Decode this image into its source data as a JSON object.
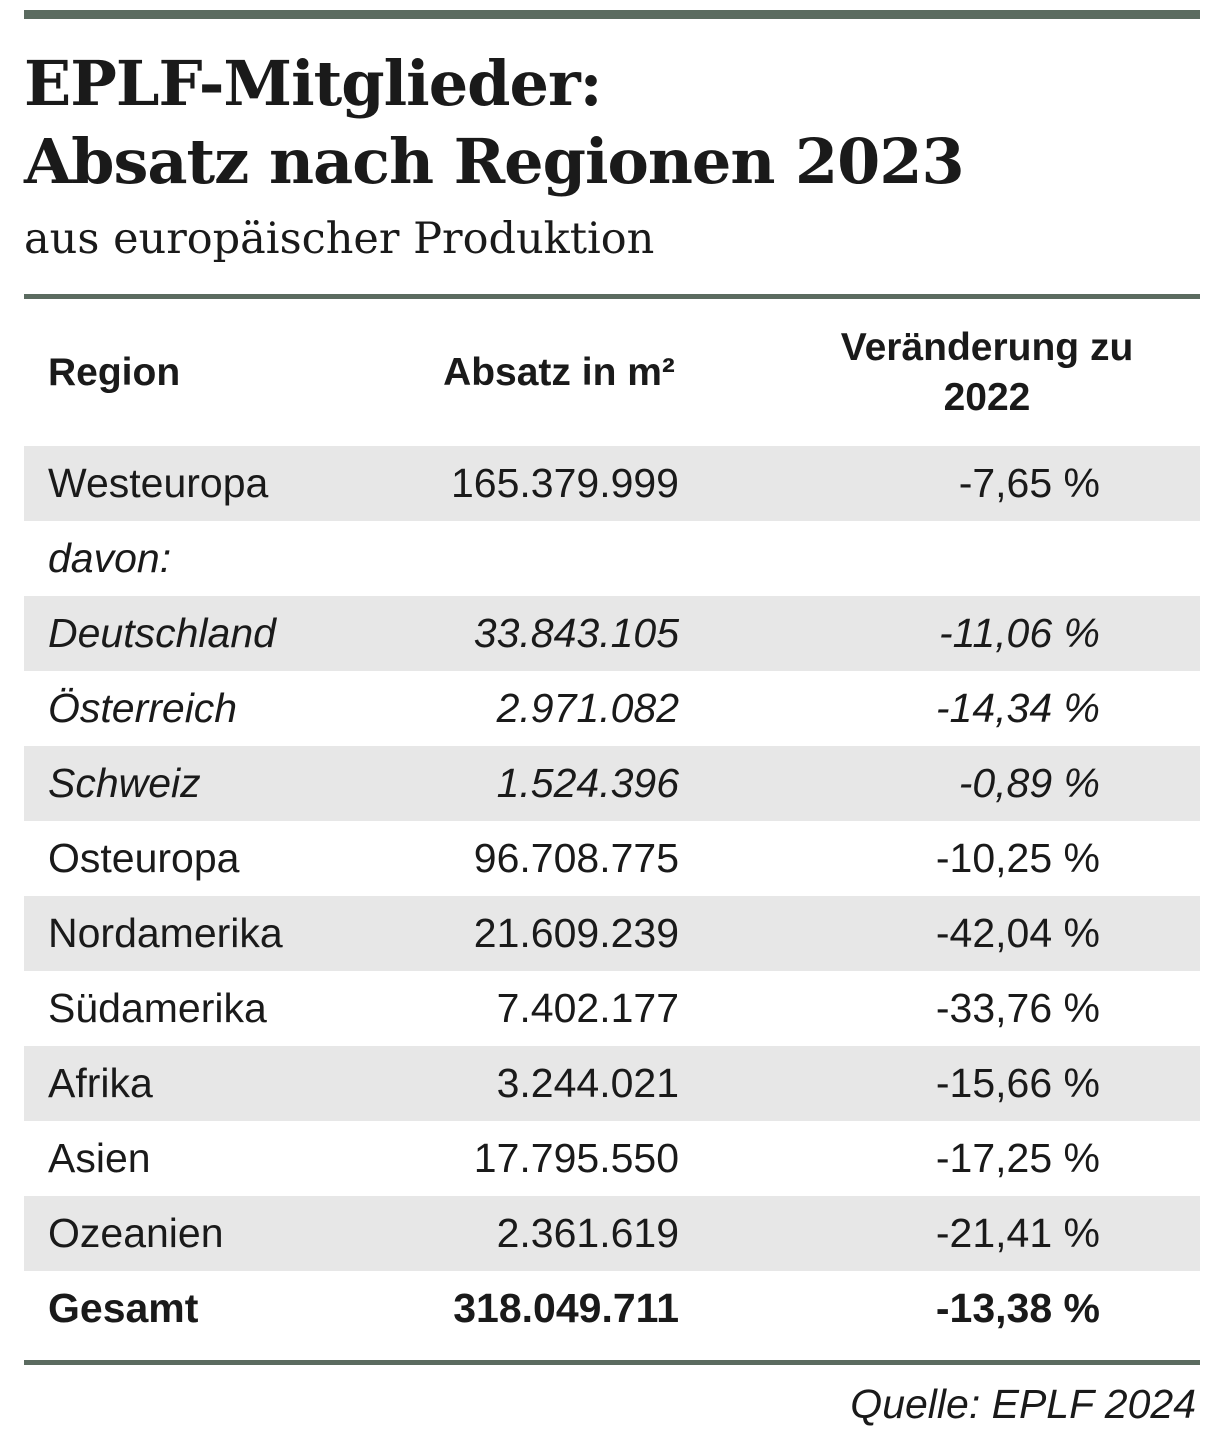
{
  "header": {
    "title_line1": "EPLF-Mitglieder:",
    "title_line2": "Absatz nach Regionen 2023",
    "subtitle": "aus europäischer Produktion"
  },
  "colors": {
    "rule": "#5b6b60",
    "row_shade": "#e7e7e7"
  },
  "source": "Quelle: EPLF 2024",
  "chart_data": {
    "type": "table",
    "title": "EPLF-Mitglieder: Absatz nach Regionen 2023",
    "subtitle": "aus europäischer Produktion",
    "columns": [
      "Region",
      "Absatz in m²",
      "Veränderung zu 2022"
    ],
    "rows": [
      [
        "Westeuropa",
        "165.379.999",
        "-7,65 %"
      ],
      [
        "davon:",
        "",
        ""
      ],
      [
        "Deutschland",
        "33.843.105",
        "-11,06 %"
      ],
      [
        "Österreich",
        "2.971.082",
        "-14,34 %"
      ],
      [
        "Schweiz",
        "1.524.396",
        "-0,89 %"
      ],
      [
        "Osteuropa",
        "96.708.775",
        "-10,25 %"
      ],
      [
        "Nordamerika",
        "21.609.239",
        "-42,04 %"
      ],
      [
        "Südamerika",
        "7.402.177",
        "-33,76 %"
      ],
      [
        "Afrika",
        "3.244.021",
        "-15,66 %"
      ],
      [
        "Asien",
        "17.795.550",
        "-17,25 %"
      ],
      [
        "Ozeanien",
        "2.361.619",
        "-21,41 %"
      ],
      [
        "Gesamt",
        "318.049.711",
        "-13,38 %"
      ]
    ],
    "source": "Quelle: EPLF 2024",
    "notes": "Rows Deutschland/Österreich/Schweiz are sub-items (davon:) of Westeuropa; Gesamt is the total row."
  }
}
